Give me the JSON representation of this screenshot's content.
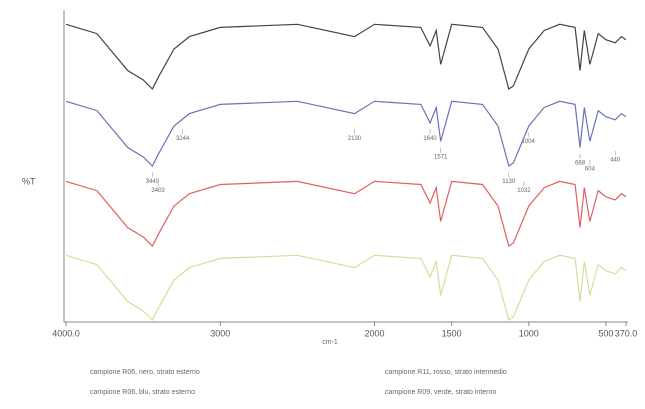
{
  "chart_data": {
    "type": "line",
    "y_label": "%T",
    "x_label": "cm-1",
    "x": [
      4000,
      3800,
      3600,
      3500,
      3440,
      3400,
      3300,
      3200,
      3000,
      2500,
      2130,
      2000,
      1700,
      1640,
      1600,
      1571,
      1500,
      1300,
      1200,
      1130,
      1100,
      1000,
      900,
      800,
      700,
      668,
      640,
      604,
      550,
      500,
      440,
      400,
      370
    ],
    "series": [
      {
        "name": "campione R06, nero, strato esterno",
        "color": "#444444",
        "values": [
          96,
          93,
          81,
          78,
          75,
          79,
          88,
          92,
          95,
          96,
          92,
          96,
          95,
          89,
          94,
          83,
          96,
          95,
          88,
          75,
          76,
          88,
          94,
          96,
          95,
          81,
          94,
          83,
          93,
          91,
          90,
          92,
          91
        ]
      },
      {
        "name": "campione R11, rosso, strato intermedio",
        "color": "#e06060",
        "values": [
          45,
          42,
          30,
          27,
          24,
          28,
          37,
          41,
          44,
          45,
          41,
          45,
          44,
          38,
          43,
          32,
          45,
          44,
          37,
          24,
          25,
          37,
          43,
          45,
          44,
          30,
          43,
          32,
          42,
          40,
          39,
          41,
          40
        ]
      },
      {
        "name": "campione R06, blu, strato esterno",
        "color": "#6a72b8",
        "values": [
          71,
          68,
          56,
          53,
          50,
          54,
          63,
          67,
          70,
          71,
          67,
          71,
          70,
          64,
          69,
          58,
          71,
          70,
          63,
          50,
          51,
          63,
          69,
          71,
          70,
          56,
          69,
          58,
          68,
          66,
          65,
          67,
          66
        ]
      },
      {
        "name": "campione R09, verde, strato interno",
        "color": "#d8dc9a",
        "values": [
          21,
          18,
          6,
          3,
          0,
          4,
          13,
          17,
          20,
          21,
          17,
          21,
          20,
          14,
          19,
          8,
          21,
          20,
          13,
          0,
          1,
          13,
          19,
          21,
          20,
          6,
          19,
          8,
          18,
          16,
          15,
          17,
          16
        ]
      }
    ],
    "xlim": [
      4000,
      370
    ],
    "ylim": [
      0,
      100
    ],
    "xticks": [
      {
        "value": 4000,
        "label": "4000.0"
      },
      3000,
      2000,
      1500,
      1000,
      500,
      {
        "value": 370,
        "label": "370.0"
      }
    ],
    "annotations": [
      {
        "x": 3244,
        "y": 60,
        "label": "3244"
      },
      {
        "x": 3440,
        "y": 46,
        "label": "3440"
      },
      {
        "x": 3403,
        "y": 43,
        "label": "3403"
      },
      {
        "x": 2130,
        "y": 60,
        "label": "2130"
      },
      {
        "x": 1640,
        "y": 60,
        "label": "1640"
      },
      {
        "x": 1571,
        "y": 54,
        "label": "1571"
      },
      {
        "x": 1130,
        "y": 46,
        "label": "1130"
      },
      {
        "x": 1032,
        "y": 43,
        "label": "1032"
      },
      {
        "x": 1004,
        "y": 59,
        "label": "1004"
      },
      {
        "x": 668,
        "y": 52,
        "label": "668"
      },
      {
        "x": 604,
        "y": 50,
        "label": "604"
      },
      {
        "x": 440,
        "y": 53,
        "label": "440"
      }
    ]
  }
}
